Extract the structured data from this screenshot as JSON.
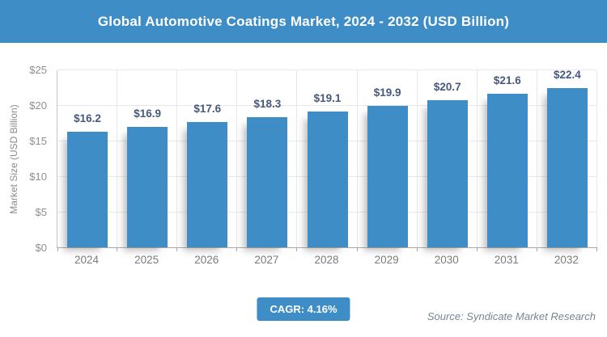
{
  "header": {
    "title": "Global Automotive Coatings Market, 2024 - 2032 (USD Billion)"
  },
  "chart_data": {
    "type": "bar",
    "title": "Global Automotive Coatings Market, 2024 - 2032 (USD Billion)",
    "categories": [
      "2024",
      "2025",
      "2026",
      "2027",
      "2028",
      "2029",
      "2030",
      "2031",
      "2032"
    ],
    "values": [
      16.2,
      16.9,
      17.6,
      18.3,
      19.1,
      19.9,
      20.7,
      21.6,
      22.4
    ],
    "value_labels": [
      "$16.2",
      "$16.9",
      "$17.6",
      "$18.3",
      "$19.1",
      "$19.9",
      "$20.7",
      "$21.6",
      "$22.4"
    ],
    "xlabel": "",
    "ylabel": "Market Size (USD Billion)",
    "ylim": [
      0,
      25
    ],
    "ytick_step": 5,
    "ytick_labels": [
      "$0",
      "$5",
      "$10",
      "$15",
      "$20",
      "$25"
    ],
    "grid": true,
    "legend": "none",
    "bar_color": "#3E8DC6",
    "value_label_color": "#46597B"
  },
  "footer": {
    "cagr_label": "CAGR: 4.16%",
    "source": "Source: Syndicate Market Research"
  },
  "colors": {
    "banner_bg": "#3E8DC6",
    "banner_text": "#ffffff",
    "gridline": "#e8e8e8",
    "axis_text": "#8f8f8f"
  }
}
